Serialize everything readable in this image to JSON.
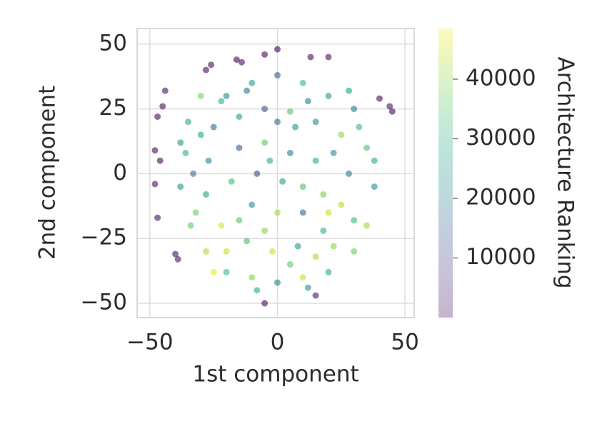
{
  "chart_data": {
    "type": "scatter",
    "x_label": "1st component",
    "y_label": "2nd component",
    "colorbar_label": "Architecture Ranking",
    "xlim": [
      -55,
      53.6
    ],
    "ylim": [
      -55.5,
      56
    ],
    "xticks": [
      {
        "value": -50,
        "label": "−50"
      },
      0,
      50
    ],
    "yticks": [
      {
        "value": -50,
        "label": "−50"
      },
      {
        "value": -25,
        "label": "−25"
      },
      0,
      25,
      50
    ],
    "grid": true,
    "colormap": "viridis",
    "clim": [
      0,
      48500
    ],
    "cticks": [
      10000,
      20000,
      30000,
      40000
    ],
    "x": [
      -47,
      -45,
      -44,
      -48,
      -46,
      -48,
      -40,
      -39,
      -28,
      -26,
      -16,
      -14,
      -5,
      0,
      13,
      20,
      40,
      45,
      44,
      -5,
      15,
      -47,
      -35,
      -30,
      -20,
      -10,
      0,
      10,
      20,
      30,
      35,
      38,
      35,
      30,
      20,
      10,
      0,
      -10,
      -20,
      -28,
      -34,
      -38,
      -36,
      -25,
      -15,
      -5,
      5,
      15,
      25,
      28,
      25,
      18,
      8,
      -2,
      -12,
      -22,
      -28,
      -27,
      -15,
      -5,
      5,
      15,
      18,
      10,
      0,
      -10,
      -18,
      -8,
      2,
      10,
      -3,
      7,
      -20,
      22,
      30,
      -32,
      -30,
      12,
      -12,
      32,
      -38,
      38,
      -25,
      5,
      15,
      -5,
      22,
      -22,
      28,
      -33,
      20,
      -15,
      0,
      -8,
      12
    ],
    "y": [
      22,
      26,
      32,
      9,
      5,
      -4,
      -31,
      -33,
      40,
      42,
      44,
      43,
      46,
      48,
      45,
      45,
      29,
      24,
      26,
      -50,
      -47,
      -17,
      20,
      30,
      30,
      35,
      38,
      35,
      30,
      25,
      10,
      -5,
      -20,
      -30,
      -38,
      -40,
      -42,
      -40,
      -38,
      -30,
      -20,
      -5,
      8,
      18,
      22,
      25,
      24,
      20,
      15,
      0,
      -12,
      -22,
      -28,
      -30,
      -26,
      -20,
      -8,
      5,
      10,
      12,
      8,
      5,
      -8,
      -15,
      -15,
      -12,
      -3,
      0,
      -3,
      -5,
      5,
      18,
      -30,
      -28,
      -18,
      -15,
      15,
      28,
      32,
      18,
      12,
      5,
      -38,
      -35,
      -32,
      -22,
      8,
      28,
      32,
      0,
      -15,
      -18,
      20,
      -45,
      -44
    ],
    "values": [
      1500,
      1200,
      2000,
      1800,
      900,
      2500,
      1600,
      2200,
      1400,
      1900,
      1100,
      2400,
      1300,
      800,
      1700,
      2100,
      1500,
      1000,
      2300,
      1200,
      2600,
      2000,
      30000,
      38000,
      22000,
      27000,
      15000,
      32000,
      26000,
      18000,
      34000,
      24000,
      41000,
      37000,
      29000,
      44000,
      21000,
      39000,
      33000,
      42000,
      36000,
      25000,
      31000,
      17000,
      28000,
      12000,
      35000,
      23000,
      40000,
      19000,
      43000,
      30000,
      26000,
      45000,
      34000,
      46000,
      27000,
      22000,
      14000,
      36000,
      20000,
      29000,
      38000,
      16000,
      41000,
      24000,
      33000,
      11000,
      27000,
      35000,
      30000,
      25000,
      44000,
      40000,
      32000,
      37000,
      28000,
      21000,
      19000,
      33000,
      26000,
      29000,
      47000,
      36000,
      42000,
      39000,
      23000,
      31000,
      27000,
      18000,
      44000,
      35000,
      16000,
      30000,
      25000
    ]
  }
}
